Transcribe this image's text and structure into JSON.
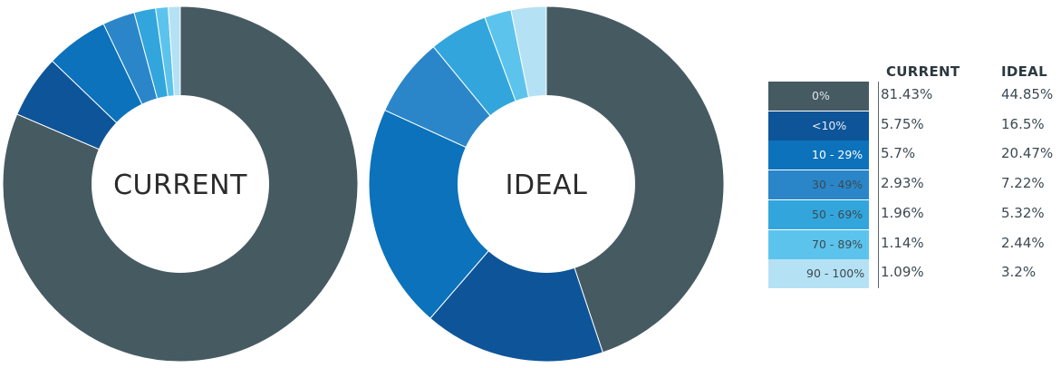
{
  "colors": [
    "#465a62",
    "#0e5499",
    "#0b72bb",
    "#2a86c9",
    "#32a6dc",
    "#5cc4ec",
    "#b5e1f4"
  ],
  "legend": {
    "header_current": "CURRENT",
    "header_ideal": "IDEAL"
  },
  "chart_data": {
    "type": "pie",
    "categories": [
      "0%",
      "<10%",
      "10 - 29%",
      "30 - 49%",
      "50 - 69%",
      "70 - 89%",
      "90 - 100%"
    ],
    "series": [
      {
        "name": "CURRENT",
        "values": [
          81.43,
          5.75,
          5.7,
          2.93,
          1.96,
          1.14,
          1.09
        ],
        "display": [
          "81.43%",
          "5.75%",
          "5.7%",
          "2.93%",
          "1.96%",
          "1.14%",
          "1.09%"
        ]
      },
      {
        "name": "IDEAL",
        "values": [
          44.85,
          16.5,
          20.47,
          7.22,
          5.32,
          2.44,
          3.2
        ],
        "display": [
          "44.85%",
          "16.5%",
          "20.47%",
          "7.22%",
          "5.32%",
          "2.44%",
          "3.2%"
        ]
      }
    ],
    "center_labels": [
      "CURRENT",
      "IDEAL"
    ],
    "style": "donut",
    "legend_position": "right"
  }
}
